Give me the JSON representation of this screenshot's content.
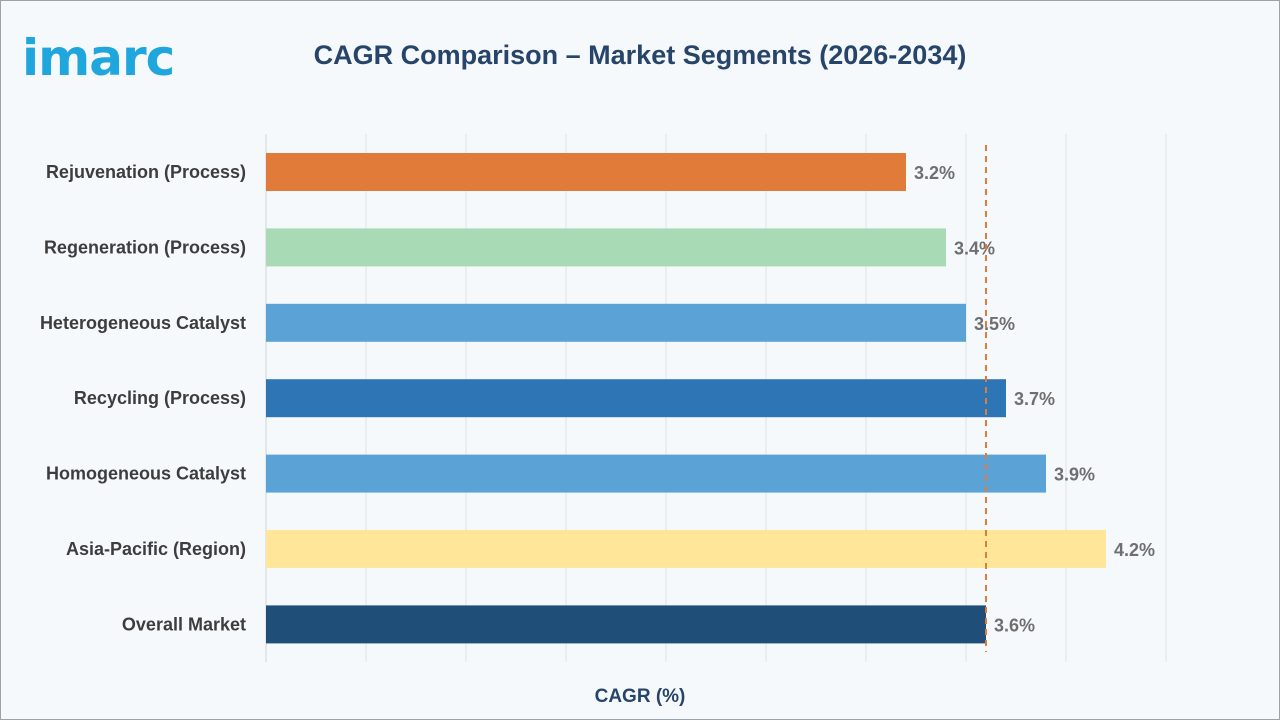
{
  "header": {
    "logo_text": "imarc",
    "title": "CAGR Comparison – Market Segments (2026-2034)"
  },
  "chart_data": {
    "type": "bar",
    "orientation": "horizontal",
    "title": "CAGR Comparison – Market Segments (2026-2034)",
    "xlabel": "CAGR (%)",
    "ylabel": "",
    "categories": [
      "Rejuvenation (Process)",
      "Regeneration (Process)",
      "Heterogeneous Catalyst",
      "Recycling (Process)",
      "Homogeneous Catalyst",
      "Asia-Pacific (Region)",
      "Overall Market"
    ],
    "values": [
      3.2,
      3.4,
      3.5,
      3.7,
      3.9,
      4.2,
      3.6
    ],
    "value_labels": [
      "3.2%",
      "3.4%",
      "3.5%",
      "3.7%",
      "3.9%",
      "4.2%",
      "3.6%"
    ],
    "colors": [
      "#e07b39",
      "#a8dab5",
      "#5ba3d6",
      "#2e75b6",
      "#5ba3d6",
      "#ffe699",
      "#1f4e79"
    ],
    "xlim": [
      0,
      4.5
    ],
    "reference_line": {
      "value": 3.6,
      "style": "dashed",
      "color": "#e07b39"
    },
    "grid": "vertical",
    "legend": "none"
  }
}
